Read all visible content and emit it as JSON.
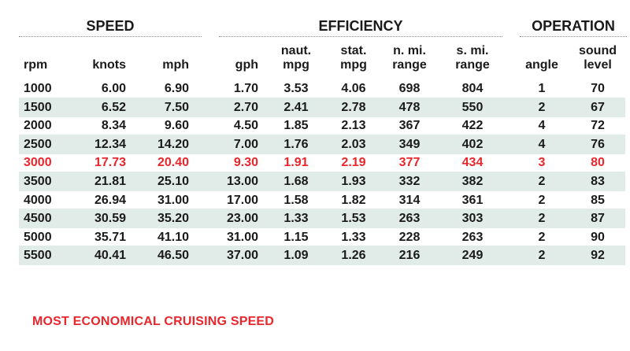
{
  "groups": {
    "speed": "SPEED",
    "efficiency": "EFFICIENCY",
    "operation": "OPERATION"
  },
  "columns": {
    "rpm": "rpm",
    "knots": "knots",
    "mph": "mph",
    "gph": "gph",
    "naut_mpg": [
      "naut.",
      "mpg"
    ],
    "stat_mpg": [
      "stat.",
      "mpg"
    ],
    "nmi_range": [
      "n. mi.",
      "range"
    ],
    "smi_range": [
      "s. mi.",
      "range"
    ],
    "angle": "angle",
    "sound_level": [
      "sound",
      "level"
    ]
  },
  "rows": [
    [
      "1000",
      "6.00",
      "6.90",
      "1.70",
      "3.53",
      "4.06",
      "698",
      "804",
      "1",
      "70"
    ],
    [
      "1500",
      "6.52",
      "7.50",
      "2.70",
      "2.41",
      "2.78",
      "478",
      "550",
      "2",
      "67"
    ],
    [
      "2000",
      "8.34",
      "9.60",
      "4.50",
      "1.85",
      "2.13",
      "367",
      "422",
      "4",
      "72"
    ],
    [
      "2500",
      "12.34",
      "14.20",
      "7.00",
      "1.76",
      "2.03",
      "349",
      "402",
      "4",
      "76"
    ],
    [
      "3000",
      "17.73",
      "20.40",
      "9.30",
      "1.91",
      "2.19",
      "377",
      "434",
      "3",
      "80"
    ],
    [
      "3500",
      "21.81",
      "25.10",
      "13.00",
      "1.68",
      "1.93",
      "332",
      "382",
      "2",
      "83"
    ],
    [
      "4000",
      "26.94",
      "31.00",
      "17.00",
      "1.58",
      "1.82",
      "314",
      "361",
      "2",
      "85"
    ],
    [
      "4500",
      "30.59",
      "35.20",
      "23.00",
      "1.33",
      "1.53",
      "263",
      "303",
      "2",
      "87"
    ],
    [
      "5000",
      "35.71",
      "41.10",
      "31.00",
      "1.15",
      "1.33",
      "228",
      "263",
      "2",
      "90"
    ],
    [
      "5500",
      "40.41",
      "46.50",
      "37.00",
      "1.09",
      "1.26",
      "216",
      "249",
      "2",
      "92"
    ]
  ],
  "highlight_row": 4,
  "footer_note": "MOST ECONOMICAL CRUISING SPEED",
  "colors": {
    "highlight": "#e8262c",
    "row_shade": "#e1ece8",
    "text": "#1a1a1a"
  }
}
